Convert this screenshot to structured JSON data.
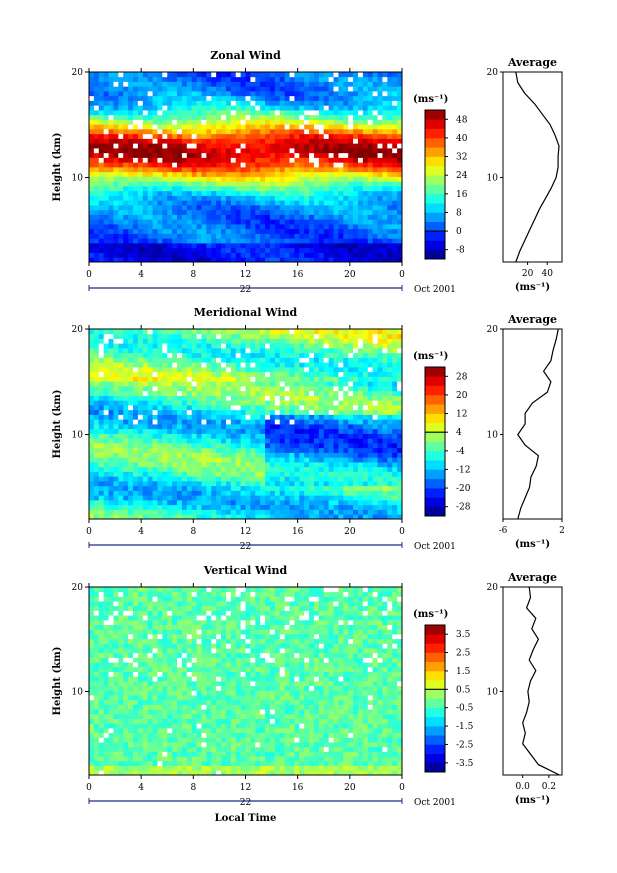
{
  "chart_data": [
    {
      "type": "heatmap",
      "title": "Zonal Wind",
      "ylabel": "Height (km)",
      "ylim": [
        2,
        20
      ],
      "yticks": [
        "20",
        "10"
      ],
      "xlim": [
        0,
        24
      ],
      "xticks": [
        "0",
        "4",
        "8",
        "12",
        "16",
        "20",
        "0"
      ],
      "day_label": "22",
      "date_label": "Oct 2001",
      "unit": "(ms⁻¹)",
      "colorbar_ticks": [
        "48",
        "40",
        "32",
        "24",
        "16",
        "8",
        "0",
        "-8"
      ],
      "colorbar_range": [
        -12,
        52
      ],
      "average_title": "Average",
      "average_xticks": [
        "20",
        "40"
      ],
      "average_xlim": [
        -5,
        55
      ],
      "average_unit": "(ms⁻¹)",
      "average_profile": [
        [
          2,
          8
        ],
        [
          3,
          12
        ],
        [
          4,
          17
        ],
        [
          5,
          22
        ],
        [
          6,
          27
        ],
        [
          7,
          32
        ],
        [
          8,
          38
        ],
        [
          9,
          44
        ],
        [
          10,
          49
        ],
        [
          11,
          51
        ],
        [
          12,
          51
        ],
        [
          13,
          52
        ],
        [
          14,
          48
        ],
        [
          15,
          43
        ],
        [
          16,
          35
        ],
        [
          17,
          27
        ],
        [
          18,
          17
        ],
        [
          19,
          10
        ],
        [
          20,
          8
        ]
      ]
    },
    {
      "type": "heatmap",
      "title": "Meridional Wind",
      "ylabel": "Height (km)",
      "ylim": [
        2,
        20
      ],
      "yticks": [
        "20",
        "10"
      ],
      "xlim": [
        0,
        24
      ],
      "xticks": [
        "0",
        "4",
        "8",
        "12",
        "16",
        "20",
        "0"
      ],
      "day_label": "22",
      "date_label": "Oct 2001",
      "unit": "(ms⁻¹)",
      "colorbar_ticks": [
        "28",
        "20",
        "12",
        "4",
        "-4",
        "-12",
        "-20",
        "-28"
      ],
      "colorbar_range": [
        -32,
        32
      ],
      "average_title": "Average",
      "average_xticks": [
        "-6",
        "2"
      ],
      "average_xlim": [
        -6,
        2
      ],
      "average_unit": "(ms⁻¹)",
      "average_profile": [
        [
          2,
          -4
        ],
        [
          3,
          -3.6
        ],
        [
          4,
          -3
        ],
        [
          5,
          -2.4
        ],
        [
          6,
          -2.2
        ],
        [
          7,
          -1.5
        ],
        [
          8,
          -1.2
        ],
        [
          9,
          -3
        ],
        [
          10,
          -4
        ],
        [
          11,
          -3
        ],
        [
          12,
          -3
        ],
        [
          13,
          -2
        ],
        [
          14,
          0
        ],
        [
          15,
          0.5
        ],
        [
          16,
          -0.5
        ],
        [
          17,
          0.5
        ],
        [
          18,
          0.8
        ],
        [
          19,
          1.2
        ],
        [
          20,
          1.5
        ]
      ]
    },
    {
      "type": "heatmap",
      "title": "Vertical Wind",
      "ylabel": "Height (km)",
      "xlabel": "Local Time",
      "ylim": [
        2,
        20
      ],
      "yticks": [
        "20",
        "10"
      ],
      "xlim": [
        0,
        24
      ],
      "xticks": [
        "0",
        "4",
        "8",
        "12",
        "16",
        "20",
        "0"
      ],
      "day_label": "22",
      "date_label": "Oct 2001",
      "unit": "(ms⁻¹)",
      "colorbar_ticks": [
        "3.5",
        "2.5",
        "1.5",
        "0.5",
        "-0.5",
        "-1.5",
        "-2.5",
        "-3.5"
      ],
      "colorbar_range": [
        -4,
        4
      ],
      "average_title": "Average",
      "average_xticks": [
        "0.0",
        "0.2"
      ],
      "average_xlim": [
        -0.15,
        0.3
      ],
      "average_unit": "(ms⁻¹)",
      "average_profile": [
        [
          2,
          0.28
        ],
        [
          3,
          0.12
        ],
        [
          4,
          0.06
        ],
        [
          5,
          0.0
        ],
        [
          6,
          0.02
        ],
        [
          7,
          0.0
        ],
        [
          8,
          0.03
        ],
        [
          9,
          0.05
        ],
        [
          10,
          0.04
        ],
        [
          11,
          0.06
        ],
        [
          12,
          0.1
        ],
        [
          13,
          0.05
        ],
        [
          14,
          0.08
        ],
        [
          15,
          0.12
        ],
        [
          16,
          0.07
        ],
        [
          17,
          0.1
        ],
        [
          18,
          0.03
        ],
        [
          19,
          0.06
        ],
        [
          20,
          0.05
        ]
      ]
    }
  ]
}
